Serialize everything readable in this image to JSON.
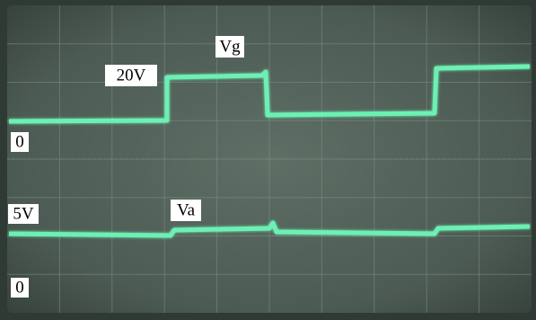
{
  "labels": [
    "20V",
    "Vg",
    "0",
    "5V",
    "Va",
    "0"
  ]
}
